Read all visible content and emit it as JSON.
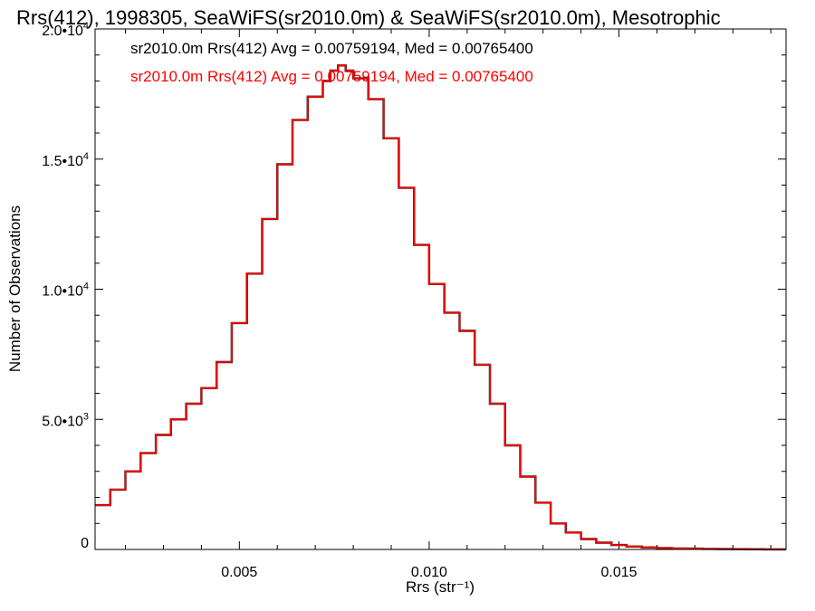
{
  "chart_data": {
    "type": "line",
    "step": true,
    "title": "Rrs(412), 1998305, SeaWiFS(sr2010.0m) & SeaWiFS(sr2010.0m), Mesotrophic",
    "xlabel": "Rrs (str⁻¹)",
    "ylabel": "Number of Observations",
    "xlim": [
      0.0012,
      0.0194
    ],
    "ylim": [
      0,
      20000
    ],
    "x_ticks": [
      {
        "value": 0.005,
        "label": "0.005"
      },
      {
        "value": 0.01,
        "label": "0.010"
      },
      {
        "value": 0.015,
        "label": "0.015"
      }
    ],
    "y_ticks": [
      {
        "value": 0,
        "label": "0",
        "exp": ""
      },
      {
        "value": 5000,
        "label": "5.0•10",
        "exp": "3"
      },
      {
        "value": 10000,
        "label": "1.0•10",
        "exp": "4"
      },
      {
        "value": 15000,
        "label": "1.5•10",
        "exp": "4"
      },
      {
        "value": 20000,
        "label": "2.0•10",
        "exp": "4"
      }
    ],
    "annotations": [
      {
        "text": "sr2010.0m Rrs(412) Avg = 0.00759194, Med = 0.00765400",
        "color": "#000000"
      },
      {
        "text": "sr2010.0m Rrs(412) Avg = 0.00759194, Med = 0.00765400",
        "color": "#ff0000"
      }
    ],
    "series": [
      {
        "color": "#000000"
      },
      {
        "color": "#ff0000"
      }
    ],
    "x": [
      0.0012,
      0.0016,
      0.002,
      0.0024,
      0.0028,
      0.0032,
      0.0036,
      0.004,
      0.0044,
      0.0048,
      0.0052,
      0.0056,
      0.006,
      0.0064,
      0.0068,
      0.0072,
      0.0074,
      0.0076,
      0.0078,
      0.008,
      0.0084,
      0.0088,
      0.0092,
      0.0096,
      0.01,
      0.0104,
      0.0108,
      0.0112,
      0.0116,
      0.012,
      0.0124,
      0.0128,
      0.0132,
      0.0136,
      0.014,
      0.0144,
      0.0148,
      0.0152,
      0.0156,
      0.016,
      0.0164,
      0.0168,
      0.0172,
      0.0176,
      0.018,
      0.0184,
      0.0188,
      0.0192
    ],
    "values": [
      1700,
      2300,
      3000,
      3700,
      4400,
      5000,
      5600,
      6200,
      7200,
      8700,
      10600,
      12700,
      14800,
      16500,
      17400,
      18000,
      18400,
      18600,
      18400,
      18100,
      17300,
      15800,
      13900,
      11700,
      10200,
      9100,
      8400,
      7100,
      5600,
      4000,
      2800,
      1800,
      1000,
      650,
      400,
      260,
      170,
      110,
      75,
      55,
      40,
      30,
      22,
      15,
      10,
      7,
      5,
      3
    ],
    "grid": false,
    "legend": "none"
  }
}
